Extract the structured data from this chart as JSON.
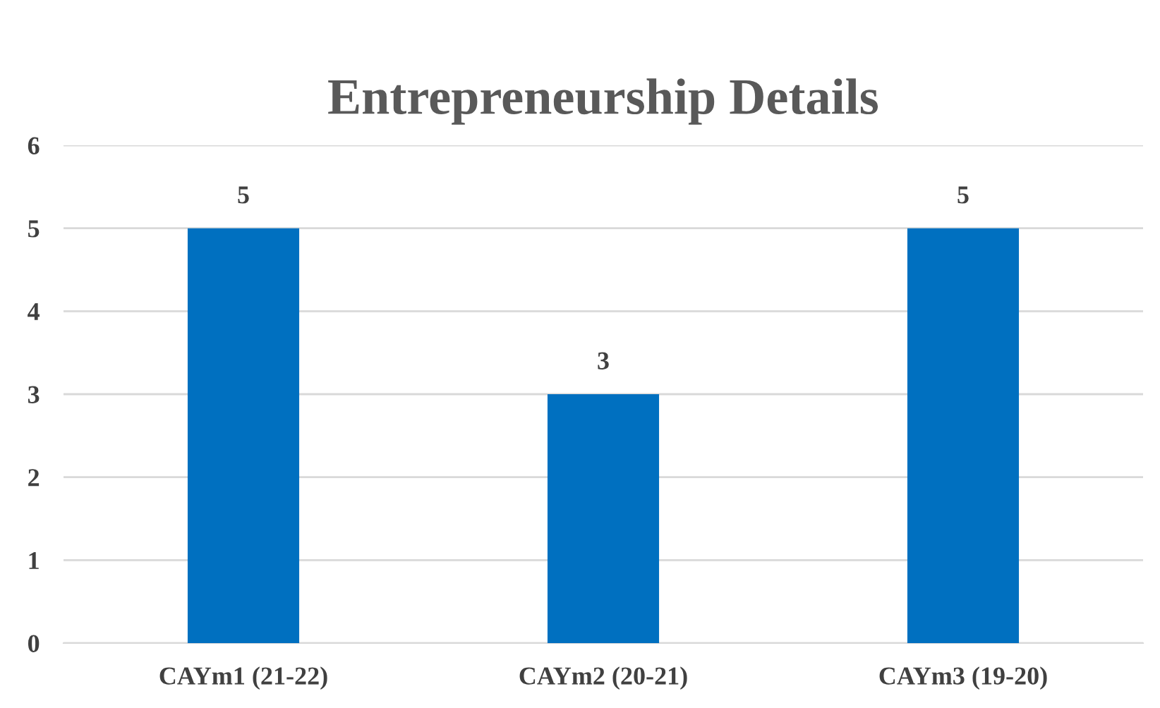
{
  "chart_data": {
    "type": "bar",
    "title": "Entrepreneurship Details",
    "categories": [
      "CAYm1 (21-22)",
      "CAYm2 (20-21)",
      "CAYm3 (19-20)"
    ],
    "values": [
      5,
      3,
      5
    ],
    "color": "#0070c0",
    "ylim": [
      0,
      6
    ],
    "yticks": [
      0,
      1,
      2,
      3,
      4,
      5,
      6
    ],
    "grid": "y",
    "data_labels": true
  }
}
